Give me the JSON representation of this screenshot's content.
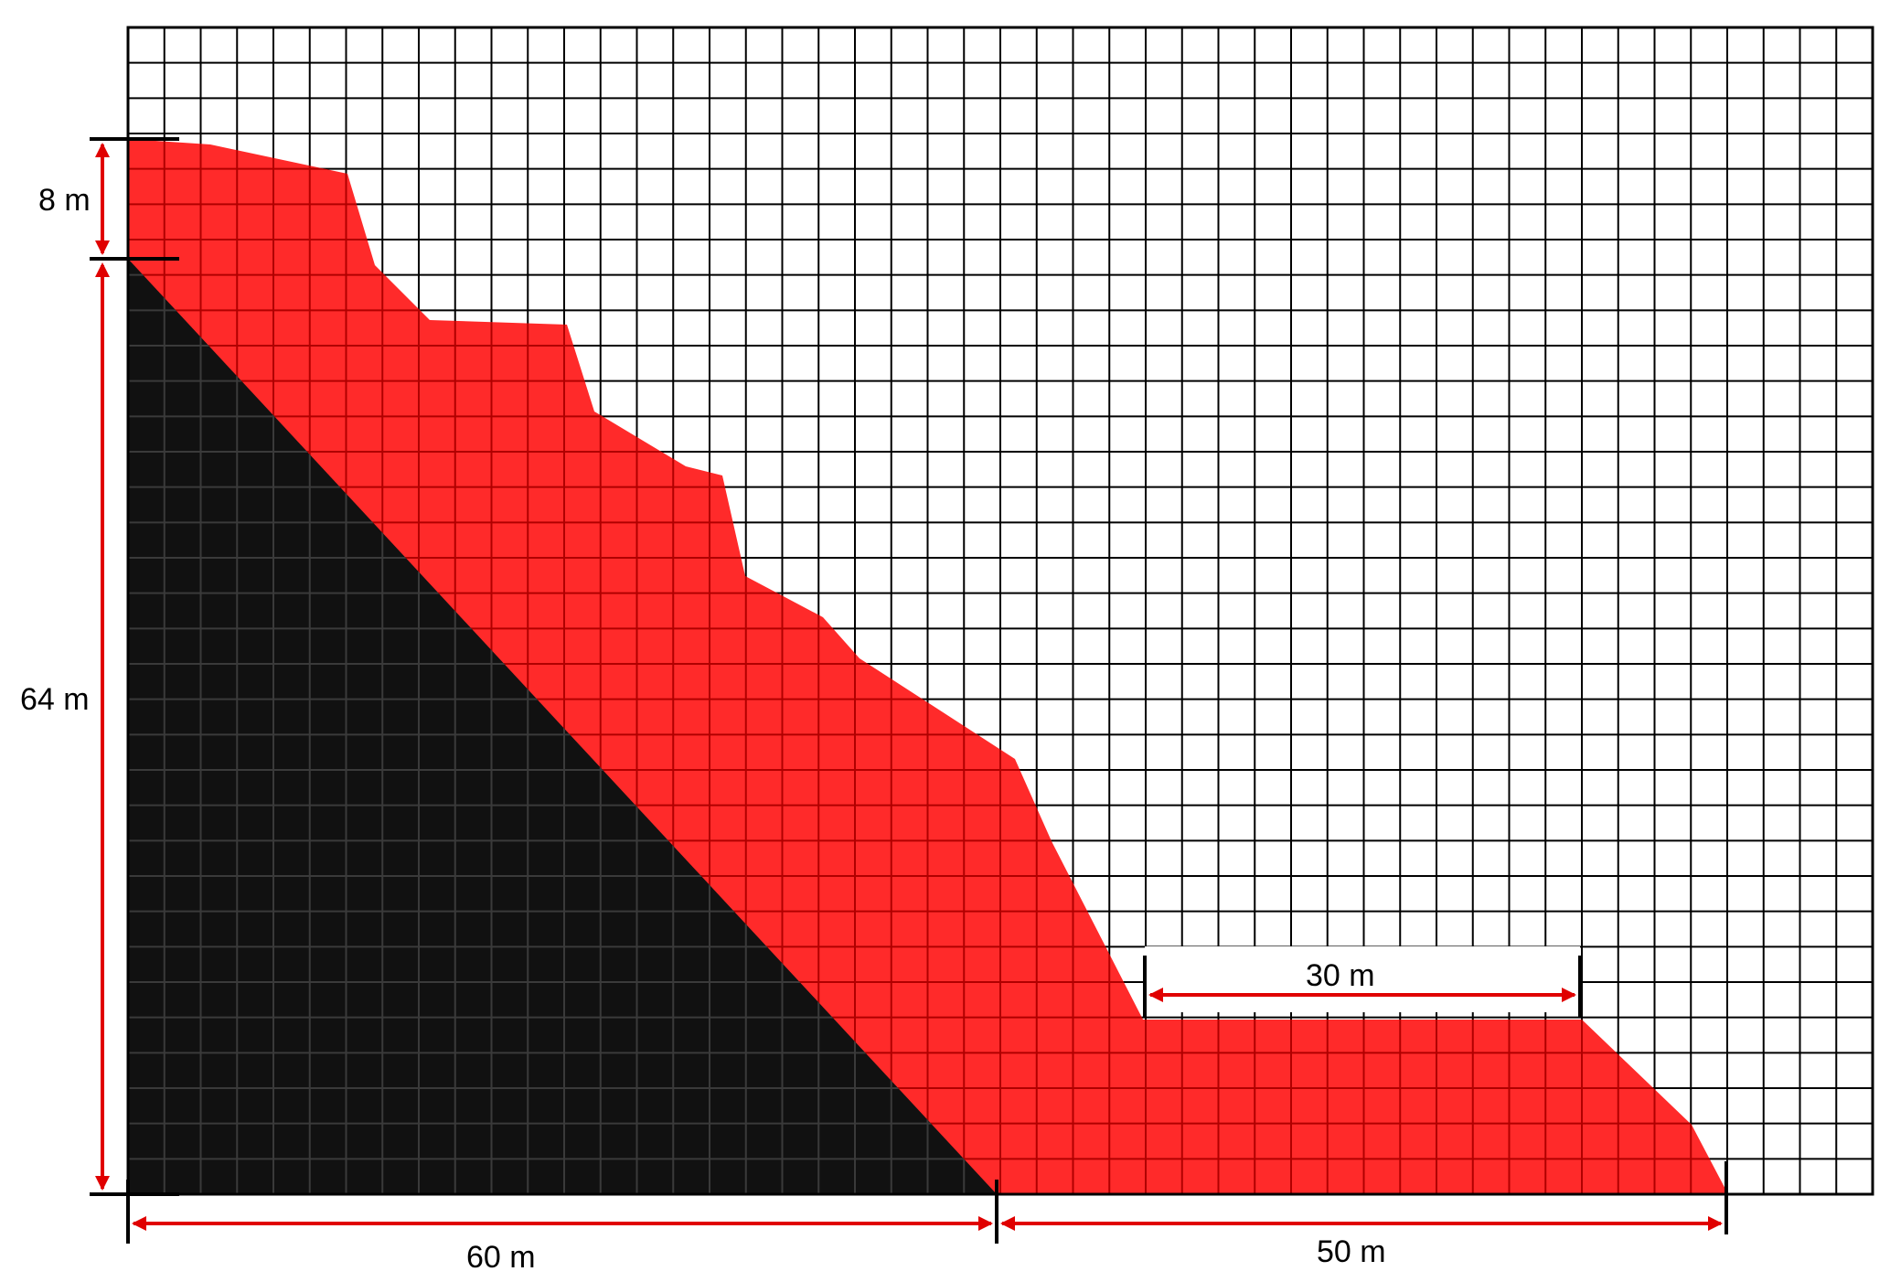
{
  "colors": {
    "background": "#ffffff",
    "grid": "#000000",
    "red_region": "#ff2a2a",
    "red_grid": "#b00000",
    "black_region": "#111111",
    "black_grid": "#3a3a3a",
    "dimension": "#e00000"
  },
  "grid": {
    "columns": 48,
    "rows": 33
  },
  "dimensions": {
    "top_height": "8 m",
    "slope_height": "64 m",
    "base_left": "60 m",
    "base_right": "50 m",
    "berm_width": "30 m"
  }
}
